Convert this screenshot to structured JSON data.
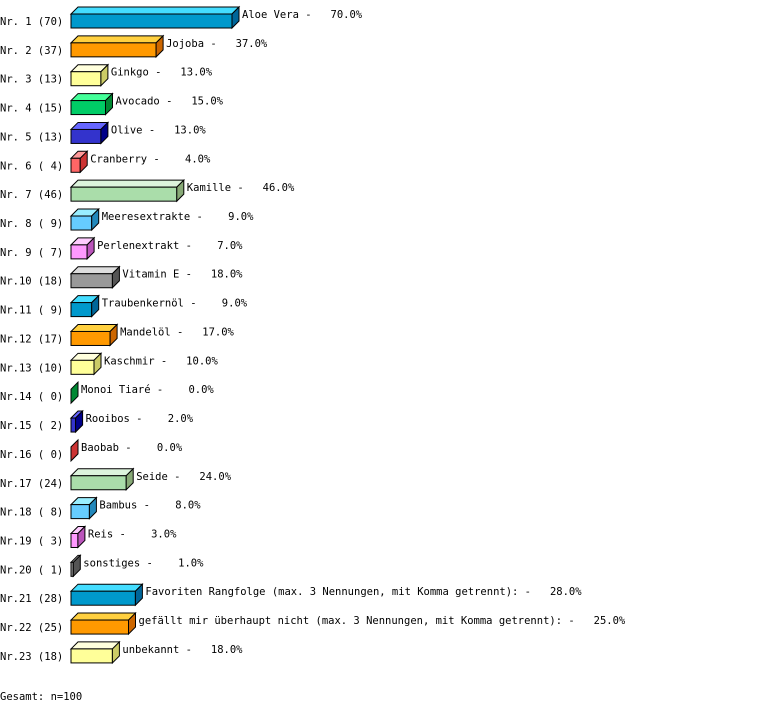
{
  "chart_data": {
    "type": "bar",
    "orientation": "horizontal",
    "style": "3d",
    "categories": [
      "Aloe Vera",
      "Jojoba",
      "Ginkgo",
      "Avocado",
      "Olive",
      "Cranberry",
      "Kamille",
      "Meeresextrakte",
      "Perlenextrakt",
      "Vitamin E",
      "Traubenkernöl",
      "Mandelöl",
      "Kaschmir",
      "Monoi Tiaré",
      "Rooibos",
      "Baobab",
      "Seide",
      "Bambus",
      "Reis",
      "sonstiges",
      "Favoriten Rangfolge (max. 3 Nennungen, mit Komma getrennt):",
      "gefällt mir überhaupt nicht (max. 3 Nennungen, mit Komma getrennt):",
      "unbekannt"
    ],
    "row_labels": [
      "Nr. 1 (70)",
      "Nr. 2 (37)",
      "Nr. 3 (13)",
      "Nr. 4 (15)",
      "Nr. 5 (13)",
      "Nr. 6 ( 4)",
      "Nr. 7 (46)",
      "Nr. 8 ( 9)",
      "Nr. 9 ( 7)",
      "Nr.10 (18)",
      "Nr.11 ( 9)",
      "Nr.12 (17)",
      "Nr.13 (10)",
      "Nr.14 ( 0)",
      "Nr.15 ( 2)",
      "Nr.16 ( 0)",
      "Nr.17 (24)",
      "Nr.18 ( 8)",
      "Nr.19 ( 3)",
      "Nr.20 ( 1)",
      "Nr.21 (28)",
      "Nr.22 (25)",
      "Nr.23 (18)"
    ],
    "values": [
      70,
      37,
      13,
      15,
      13,
      4,
      46,
      9,
      7,
      18,
      9,
      17,
      10,
      0,
      2,
      0,
      24,
      8,
      3,
      1,
      28,
      25,
      18
    ],
    "value_labels": [
      "70.0%",
      "37.0%",
      "13.0%",
      "15.0%",
      "13.0%",
      "4.0%",
      "46.0%",
      "9.0%",
      "7.0%",
      "18.0%",
      "9.0%",
      "17.0%",
      "10.0%",
      "0.0%",
      "2.0%",
      "0.0%",
      "24.0%",
      "8.0%",
      "3.0%",
      "1.0%",
      "28.0%",
      "25.0%",
      "18.0%"
    ],
    "palette": [
      [
        "#0099cc",
        "#44ddff",
        "#006699"
      ],
      [
        "#ff9900",
        "#ffd040",
        "#cc6600"
      ],
      [
        "#ffff99",
        "#ffffdd",
        "#cccc66"
      ],
      [
        "#00cc66",
        "#44ff99",
        "#008833"
      ],
      [
        "#3333cc",
        "#6666ff",
        "#000088"
      ],
      [
        "#ff6666",
        "#ff9999",
        "#cc3333"
      ],
      [
        "#aaddaa",
        "#ddf4dd",
        "#88aa77"
      ],
      [
        "#66ccff",
        "#99eeff",
        "#2288bb"
      ],
      [
        "#ff99ff",
        "#ffccff",
        "#bb55bb"
      ],
      [
        "#999999",
        "#dddddd",
        "#555555"
      ]
    ],
    "grid": false,
    "legend": "none"
  },
  "footer": "Gesamt: n=100"
}
